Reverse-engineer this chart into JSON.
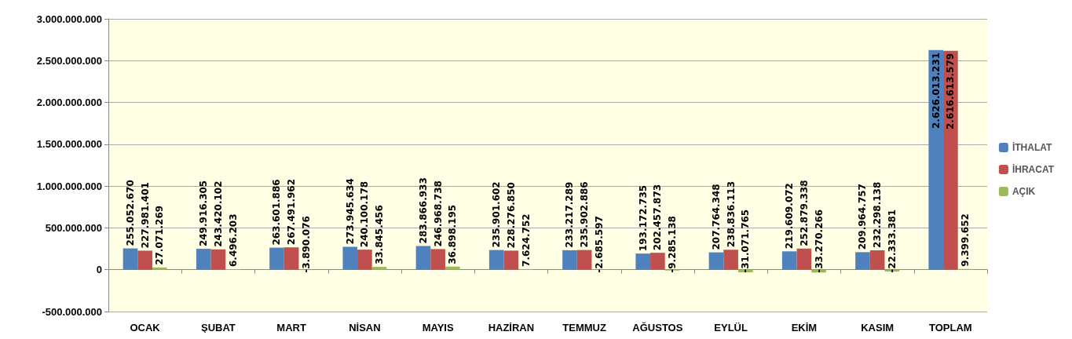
{
  "chart_data": {
    "type": "bar",
    "categories": [
      "OCAK",
      "ŞUBAT",
      "MART",
      "NİSAN",
      "MAYIS",
      "HAZİRAN",
      "TEMMUZ",
      "AĞUSTOS",
      "EYLÜL",
      "EKİM",
      "KASIM",
      "TOPLAM"
    ],
    "series": [
      {
        "name": "İTHALAT",
        "color": "#4f81bd",
        "values": [
          255052670,
          249916305,
          263601886,
          273945634,
          283866933,
          235901602,
          233217289,
          193172735,
          207764348,
          219609072,
          209964757,
          2626013231
        ],
        "value_labels": [
          "255.052.670",
          "249.916.305",
          "263.601.886",
          "273.945.634",
          "283.866.933",
          "235.901.602",
          "233.217.289",
          "193.172.735",
          "207.764.348",
          "219.609.072",
          "209.964.757",
          "2.626.013.231"
        ]
      },
      {
        "name": "İHRACAT",
        "color": "#c0504d",
        "values": [
          227981401,
          243420102,
          267491962,
          240100178,
          246968738,
          228276850,
          235902886,
          202457873,
          238836113,
          252879338,
          232298138,
          2616613579
        ],
        "value_labels": [
          "227.981.401",
          "243.420.102",
          "267.491.962",
          "240.100.178",
          "246.968.738",
          "228.276.850",
          "235.902.886",
          "202.457.873",
          "238.836.113",
          "252.879.338",
          "232.298.138",
          "2.616.613.579"
        ]
      },
      {
        "name": "AÇIK",
        "color": "#9bbb59",
        "values": [
          27071269,
          6496203,
          -3890076,
          33845456,
          36898195,
          7624752,
          -2685597,
          -9285138,
          -31071765,
          -33270266,
          -22333381,
          9399652
        ],
        "value_labels": [
          "27.071.269",
          "6.496.203",
          "-3.890.076",
          "33.845.456",
          "36.898.195",
          "7.624.752",
          "-2.685.597",
          "-9.285.138",
          "-31.071.765",
          "-33.270.266",
          "-22.333.381",
          "9.399.652"
        ]
      }
    ],
    "ylim": [
      -500000000,
      3000000000
    ],
    "yticks": [
      {
        "value": -500000000,
        "label": "-500.000.000"
      },
      {
        "value": 0,
        "label": "0"
      },
      {
        "value": 500000000,
        "label": "500.000.000"
      },
      {
        "value": 1000000000,
        "label": "1.000.000.000"
      },
      {
        "value": 1500000000,
        "label": "1.500.000.000"
      },
      {
        "value": 2000000000,
        "label": "2.000.000.000"
      },
      {
        "value": 2500000000,
        "label": "2.500.000.000"
      },
      {
        "value": 3000000000,
        "label": "3.000.000.000"
      }
    ],
    "grid": "y",
    "legend": "right"
  }
}
